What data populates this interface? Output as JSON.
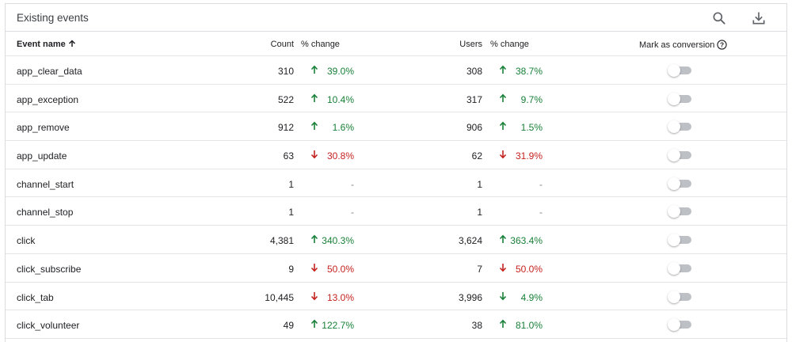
{
  "card": {
    "title": "Existing events"
  },
  "toolbar": {
    "search_icon": "search-icon",
    "download_icon": "download-icon"
  },
  "columns": {
    "event_name": "Event name",
    "count": "Count",
    "count_change": "% change",
    "users": "Users",
    "users_change": "% change",
    "mark_conversion": "Mark as conversion"
  },
  "colors": {
    "up": "#188038",
    "down": "#c5221f",
    "toggle_off": "#bdc1c6"
  },
  "rows": [
    {
      "name": "app_clear_data",
      "count": "310",
      "count_dir": "up",
      "count_change": "39.0%",
      "users": "308",
      "users_dir": "up",
      "users_change": "38.7%",
      "conversion": false
    },
    {
      "name": "app_exception",
      "count": "522",
      "count_dir": "up",
      "count_change": "10.4%",
      "users": "317",
      "users_dir": "up",
      "users_change": "9.7%",
      "conversion": false
    },
    {
      "name": "app_remove",
      "count": "912",
      "count_dir": "up",
      "count_change": "1.6%",
      "users": "906",
      "users_dir": "up",
      "users_change": "1.5%",
      "conversion": false
    },
    {
      "name": "app_update",
      "count": "63",
      "count_dir": "down",
      "count_change": "30.8%",
      "users": "62",
      "users_dir": "down",
      "users_change": "31.9%",
      "conversion": false
    },
    {
      "name": "channel_start",
      "count": "1",
      "count_dir": "none",
      "count_change": "-",
      "users": "1",
      "users_dir": "none",
      "users_change": "-",
      "conversion": false
    },
    {
      "name": "channel_stop",
      "count": "1",
      "count_dir": "none",
      "count_change": "-",
      "users": "1",
      "users_dir": "none",
      "users_change": "-",
      "conversion": false
    },
    {
      "name": "click",
      "count": "4,381",
      "count_dir": "up",
      "count_change": "340.3%",
      "users": "3,624",
      "users_dir": "up",
      "users_change": "363.4%",
      "conversion": false
    },
    {
      "name": "click_subscribe",
      "count": "9",
      "count_dir": "down",
      "count_change": "50.0%",
      "users": "7",
      "users_dir": "down",
      "users_change": "50.0%",
      "conversion": false
    },
    {
      "name": "click_tab",
      "count": "10,445",
      "count_dir": "down",
      "count_change": "13.0%",
      "users": "3,996",
      "users_dir": "down-green",
      "users_change": "4.9%",
      "conversion": false
    },
    {
      "name": "click_volunteer",
      "count": "49",
      "count_dir": "up",
      "count_change": "122.7%",
      "users": "38",
      "users_dir": "up",
      "users_change": "81.0%",
      "conversion": false
    }
  ]
}
